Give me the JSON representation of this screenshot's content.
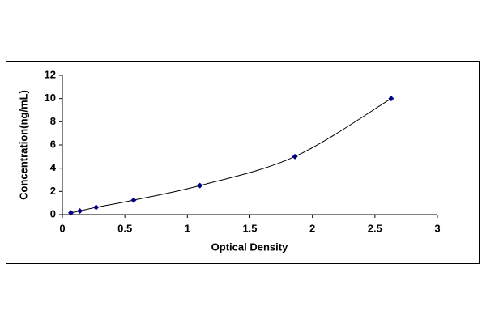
{
  "chart_data": {
    "type": "line",
    "x_label": "Optical Density",
    "y_label": "Concentration(ng/mL)",
    "x": [
      0.068,
      0.14,
      0.27,
      0.57,
      1.1,
      1.86,
      2.63
    ],
    "series": [
      {
        "color": "#000080",
        "values": [
          0.156,
          0.312,
          0.625,
          1.25,
          2.5,
          5,
          10
        ]
      }
    ],
    "xlim": [
      0,
      3
    ],
    "xticks": [
      0,
      0.5,
      1,
      1.5,
      2,
      2.5,
      3
    ],
    "ylim": [
      0,
      12
    ],
    "yticks": [
      0,
      2,
      4,
      6,
      8,
      10,
      12
    ],
    "grid": false
  }
}
